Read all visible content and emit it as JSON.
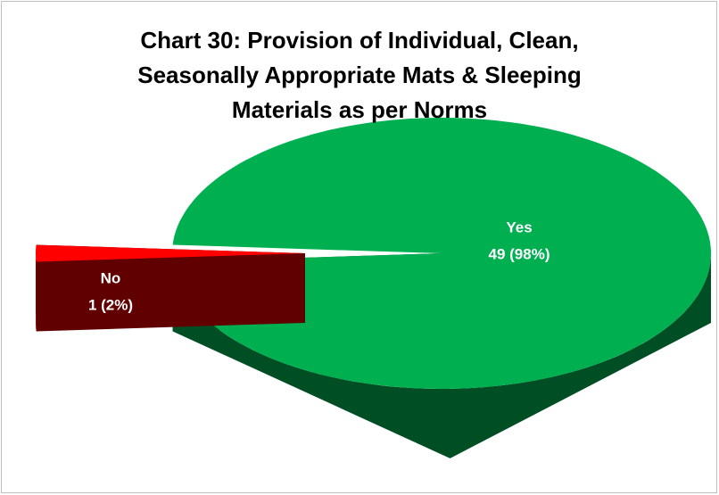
{
  "chart_data": {
    "type": "pie",
    "title": "Chart 30: Provision of Individual, Clean,\nSeasonally Appropriate Mats & Sleeping\nMaterials as per Norms",
    "categories": [
      "Yes",
      "No"
    ],
    "values": [
      49,
      1
    ],
    "value_labels": [
      "49 (98%)",
      "1 (2%)"
    ],
    "colors": [
      "#00b050",
      "#ff0000"
    ],
    "three_d": true,
    "exploded": [
      false,
      true
    ]
  }
}
